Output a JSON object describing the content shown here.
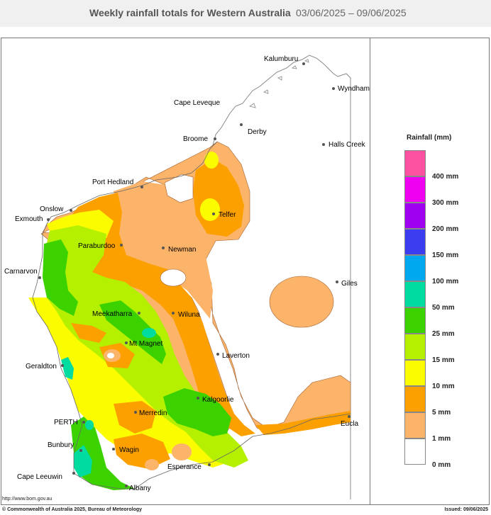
{
  "header": {
    "title": "Weekly rainfall totals for Western Australia",
    "date_range": "03/06/2025 – 09/06/2025"
  },
  "colors": {
    "r1": "#fcb46a",
    "r5": "#fca000",
    "r10": "#fcfc00",
    "r15": "#b4f000",
    "r25": "#3cd200",
    "r50": "#00dca0",
    "r100": "#00a8f0",
    "r150": "#3c3cf0",
    "r200": "#a000f0",
    "r300": "#f000f0",
    "r400": "#fc50a0"
  },
  "cities": [
    {
      "name": "Kalumburu"
    },
    {
      "name": "Wyndham"
    },
    {
      "name": "Cape Leveque"
    },
    {
      "name": "Derby"
    },
    {
      "name": "Broome"
    },
    {
      "name": "Halls Creek"
    },
    {
      "name": "Port Hedland"
    },
    {
      "name": "Onslow"
    },
    {
      "name": "Exmouth"
    },
    {
      "name": "Telfer"
    },
    {
      "name": "Paraburdoo"
    },
    {
      "name": "Newman"
    },
    {
      "name": "Carnarvon"
    },
    {
      "name": "Giles"
    },
    {
      "name": "Meekatharra"
    },
    {
      "name": "Wiluna"
    },
    {
      "name": "Mt Magnet"
    },
    {
      "name": "Laverton"
    },
    {
      "name": "Geraldton"
    },
    {
      "name": "Kalgoorlie"
    },
    {
      "name": "Merredin"
    },
    {
      "name": "PERTH"
    },
    {
      "name": "Eucla"
    },
    {
      "name": "Bunbury"
    },
    {
      "name": "Wagin"
    },
    {
      "name": "Esperance"
    },
    {
      "name": "Cape Leeuwin"
    },
    {
      "name": "Albany"
    }
  ],
  "legend": {
    "title": "Rainfall (mm)",
    "labels": [
      "400 mm",
      "300 mm",
      "200 mm",
      "150 mm",
      "100 mm",
      "50 mm",
      "25 mm",
      "15 mm",
      "10 mm",
      "5 mm",
      "1 mm",
      "0 mm"
    ],
    "swatch_colors": [
      "#fc50a0",
      "#f000f0",
      "#a000f0",
      "#3c3cf0",
      "#00a8f0",
      "#00dca0",
      "#3cd200",
      "#b4f000",
      "#fcfc00",
      "#fca000",
      "#fcb46a",
      "#ffffff"
    ]
  },
  "footer": {
    "url": "http://www.bom.gov.au",
    "copyright": "© Commonwealth of Australia 2025, Bureau of Meteorology",
    "issued": "Issued: 09/06/2025"
  }
}
